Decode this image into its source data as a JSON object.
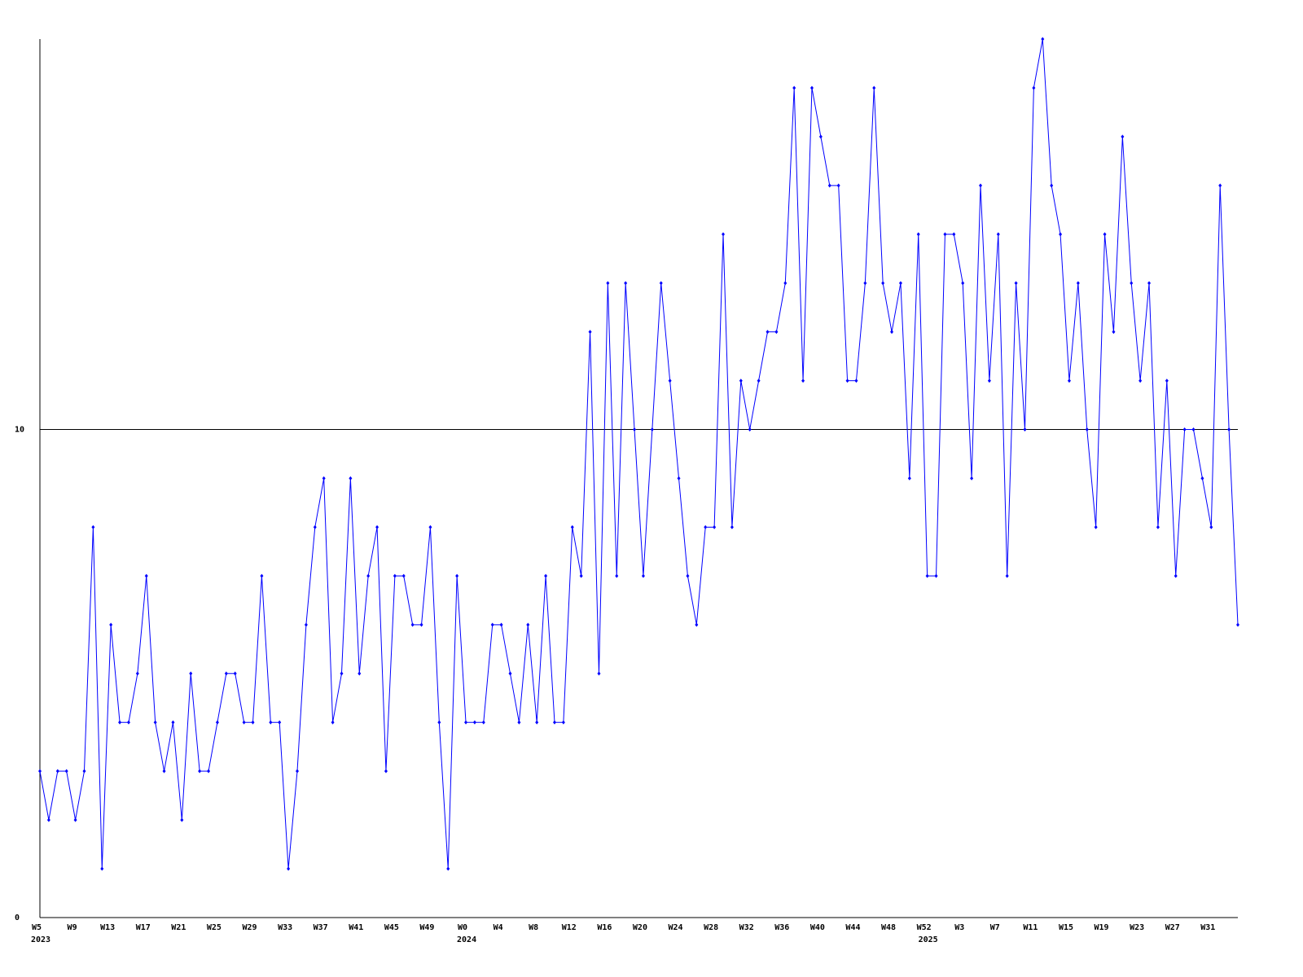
{
  "chart_data": {
    "type": "line",
    "categories": [
      "W5",
      null,
      null,
      null,
      "W9",
      null,
      null,
      null,
      "W13",
      null,
      null,
      null,
      "W17",
      null,
      null,
      null,
      "W21",
      null,
      null,
      null,
      "W25",
      null,
      null,
      null,
      "W29",
      null,
      null,
      null,
      "W33",
      null,
      null,
      null,
      "W37",
      null,
      null,
      null,
      "W41",
      null,
      null,
      null,
      "W45",
      null,
      null,
      null,
      "W49",
      null,
      null,
      null,
      "W0",
      null,
      null,
      null,
      "W4",
      null,
      null,
      null,
      "W8",
      null,
      null,
      null,
      "W12",
      null,
      null,
      null,
      "W16",
      null,
      null,
      null,
      "W20",
      null,
      null,
      null,
      "W24",
      null,
      null,
      null,
      "W28",
      null,
      null,
      null,
      "W32",
      null,
      null,
      null,
      "W36",
      null,
      null,
      null,
      "W40",
      null,
      null,
      null,
      "W44",
      null,
      null,
      null,
      "W48",
      null,
      null,
      null,
      "W52",
      null,
      null,
      null,
      "W3",
      null,
      null,
      null,
      "W7",
      null,
      null,
      null,
      "W11",
      null,
      null,
      null,
      "W15",
      null,
      null,
      null,
      "W19",
      null,
      null,
      null,
      "W23",
      null,
      null,
      null,
      "W27",
      null,
      null,
      null,
      "W31",
      null,
      null,
      null
    ],
    "category_years": [
      "2023",
      null,
      null,
      null,
      null,
      null,
      null,
      null,
      null,
      null,
      null,
      null,
      null,
      null,
      null,
      null,
      null,
      null,
      null,
      null,
      null,
      null,
      null,
      null,
      null,
      null,
      null,
      null,
      null,
      null,
      null,
      null,
      null,
      null,
      null,
      null,
      null,
      null,
      null,
      null,
      null,
      null,
      null,
      null,
      null,
      null,
      null,
      null,
      "2024",
      null,
      null,
      null,
      null,
      null,
      null,
      null,
      null,
      null,
      null,
      null,
      null,
      null,
      null,
      null,
      null,
      null,
      null,
      null,
      null,
      null,
      null,
      null,
      null,
      null,
      null,
      null,
      null,
      null,
      null,
      null,
      null,
      null,
      null,
      null,
      null,
      null,
      null,
      null,
      null,
      null,
      null,
      null,
      null,
      null,
      null,
      null,
      null,
      null,
      null,
      null,
      "2025",
      null,
      null,
      null,
      null,
      null,
      null,
      null,
      null,
      null,
      null,
      null,
      null,
      null,
      null,
      null,
      null,
      null,
      null,
      null,
      null,
      null,
      null,
      null,
      null,
      null,
      null,
      null,
      null,
      null,
      null,
      null,
      null,
      null,
      null,
      null
    ],
    "values": [
      3,
      2,
      3,
      3,
      2,
      3,
      8,
      1,
      6,
      4,
      4,
      5,
      7,
      4,
      3,
      4,
      2,
      5,
      3,
      3,
      4,
      5,
      5,
      4,
      4,
      7,
      4,
      4,
      1,
      3,
      6,
      8,
      9,
      4,
      5,
      9,
      5,
      7,
      8,
      3,
      7,
      7,
      6,
      6,
      8,
      4,
      1,
      7,
      4,
      4,
      4,
      6,
      6,
      5,
      4,
      6,
      4,
      7,
      4,
      4,
      8,
      7,
      12,
      5,
      13,
      7,
      13,
      10,
      7,
      10,
      13,
      11,
      9,
      7,
      6,
      8,
      8,
      14,
      8,
      11,
      10,
      11,
      12,
      12,
      13,
      17,
      11,
      17,
      16,
      15,
      15,
      11,
      11,
      13,
      17,
      13,
      12,
      13,
      9,
      14,
      7,
      7,
      14,
      14,
      13,
      9,
      15,
      11,
      14,
      7,
      13,
      10,
      17,
      18,
      15,
      14,
      11,
      13,
      10,
      8,
      14,
      12,
      16,
      13,
      11,
      13,
      8,
      11,
      7,
      10,
      10,
      9,
      8,
      15,
      10,
      6
    ],
    "color": "#0000ff",
    "ylim": [
      0,
      18
    ],
    "yticks": [
      0,
      10
    ],
    "grid": true
  }
}
